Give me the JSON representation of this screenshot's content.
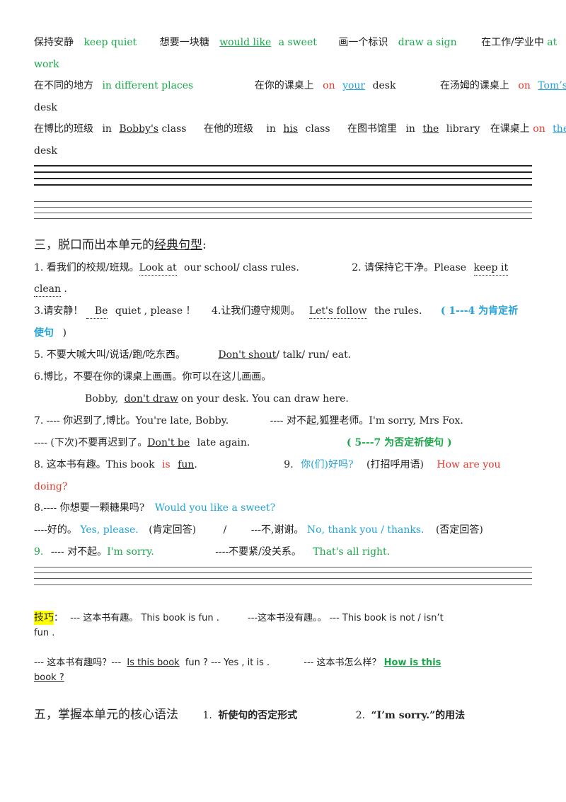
{
  "vocab": {
    "r1": [
      "保持安静",
      "keep quiet",
      "想要一块糖",
      "would like",
      "a sweet",
      "画一个标识",
      "draw a sign",
      "在工作/学业中",
      "at",
      "work"
    ],
    "r2": [
      "在不同的地方",
      "in different places",
      "在你的课桌上",
      "on",
      "your",
      "desk",
      "在汤姆的课桌上",
      "on",
      "Tom’s",
      "desk"
    ],
    "r3": [
      "在博比的班级",
      "in",
      "Bobby's",
      "class",
      "在他的班级",
      "in",
      "his",
      "class",
      "在图书馆里",
      "in",
      "the",
      "library",
      "在课桌上",
      "on",
      "the",
      "desk"
    ]
  },
  "section3": {
    "title_pre": "三，脱口而出本单元的",
    "title_u": "经典句型",
    "title_post": ":",
    "s1": [
      "1. 看我们的校规/班规。",
      "Look at",
      "our school/ class rules.",
      "2. 请保持它干净。Please",
      "keep it",
      "clean",
      "."
    ],
    "s3": [
      "3.请安静！",
      "Be",
      "quiet ,  please ！",
      "4.让我们遵守规则。",
      "Let's follow",
      "the rules.",
      "( 1---4 为肯定祈",
      "使句",
      ")"
    ],
    "s5": [
      "5. 不要大喊大叫/说话/跑/吃东西。",
      "Don't shout",
      "/ talk/ run/ eat."
    ],
    "s6": [
      "6.博比，不要在你的课桌上画画。你可以在这儿画画。",
      "Bobby,",
      "don't draw",
      "on your desk. You can draw here."
    ],
    "s7": [
      "7. ---- 你迟到了,博比。You're late, Bobby.",
      "---- 对不起,狐狸老师。I'm sorry, Mrs Fox."
    ],
    "s7b": [
      "---- (下次)不要再迟到了。",
      "Don't be",
      "late again.",
      "( 5---7 为否定祈使句 )"
    ],
    "s8": [
      "8. 这本书有趣。This book",
      "is",
      "fun",
      ".",
      "9.",
      "你(们)好吗?",
      "(打招呼用语)",
      "How are you",
      "doing?"
    ],
    "s8b": [
      "8.---- 你想要一颗糖果吗?",
      "Would you like a sweet?"
    ],
    "s8c": [
      "----好的。",
      "Yes, please.",
      "(肯定回答)",
      "/",
      "---不,谢谢。",
      "No, thank you / thanks.",
      "(否定回答)"
    ],
    "s9": [
      "9.",
      "---- 对不起。",
      "I'm sorry.",
      "----不要紧/没关系。",
      "That's all right."
    ]
  },
  "tips": {
    "label": "技巧",
    "colon": "：",
    "l1": [
      "--- 这本书有趣。 This book is fun .",
      "---这本书没有趣。。 --- This book is not / isn’t",
      "fun ."
    ],
    "l2": [
      "--- 这本书有趣吗？---",
      "Is this book",
      "fun ? --- Yes , it is .",
      "--- 这本书怎么样？",
      "How is this",
      "book ?"
    ]
  },
  "section5": {
    "title": "五，掌握本单元的核心语法",
    "item1_num": "1.",
    "item1": "祈使句的否定形式",
    "item2_num": "2.",
    "item2": "“I’m sorry.”的用法"
  }
}
